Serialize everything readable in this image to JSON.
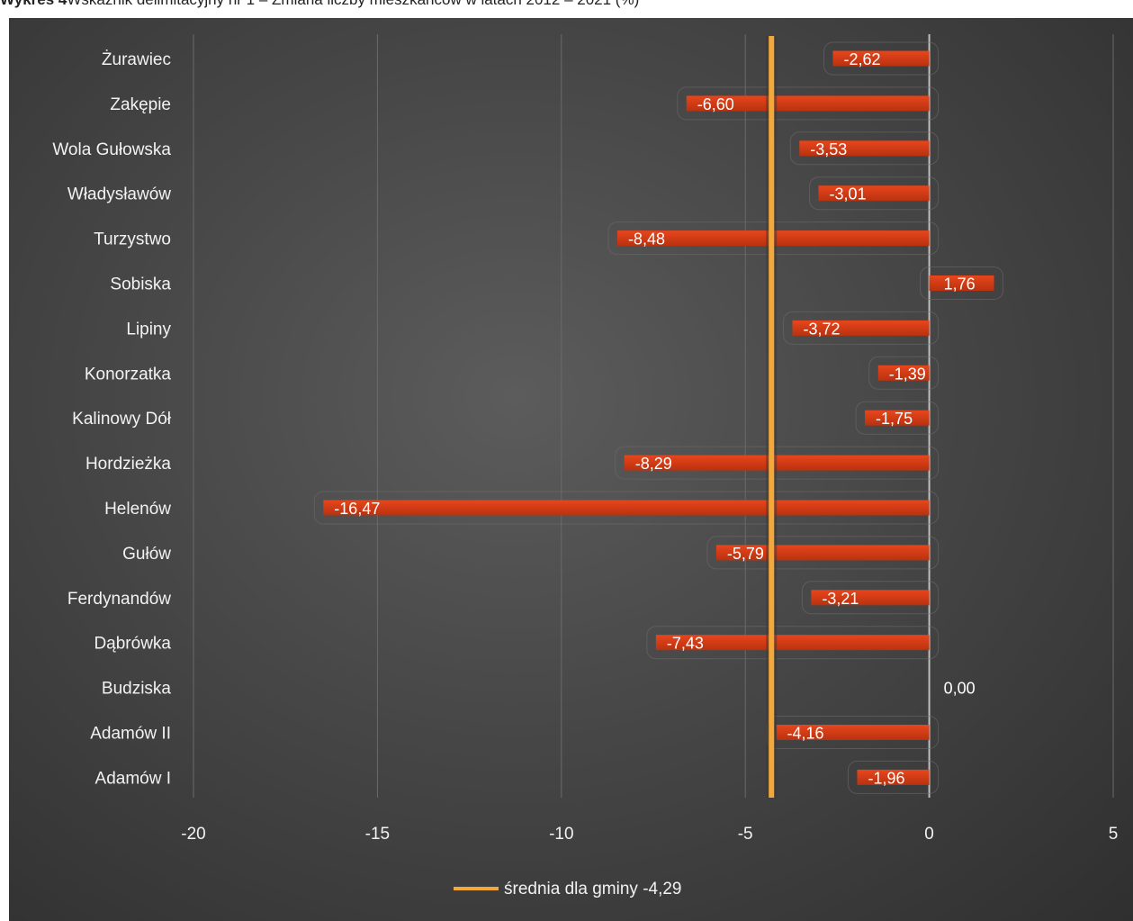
{
  "figure": {
    "title_lead": "Wykres 4",
    "title_text": "Wskaźnik delimitacyjny nr 1 – Zmiana liczby mieszkańców w latach 2012 – 2021 (%)"
  },
  "colors": {
    "bar": "#e8461c",
    "bar_dark": "#b83210",
    "average_line": "#f5a83a",
    "zero_line": "#bfbfbf",
    "grid": "#6a6a6a",
    "text": "#f2f2f2"
  },
  "chart_data": {
    "type": "bar",
    "orientation": "horizontal",
    "categories": [
      "Żurawiec",
      "Zakępie",
      "Wola Gułowska",
      "Władysławów",
      "Turzystwo",
      "Sobiska",
      "Lipiny",
      "Konorzatka",
      "Kalinowy Dół",
      "Hordzieżka",
      "Helenów",
      "Gułów",
      "Ferdynandów",
      "Dąbrówka",
      "Budziska",
      "Adamów II",
      "Adamów I"
    ],
    "values": [
      -2.62,
      -6.6,
      -3.53,
      -3.01,
      -8.48,
      1.76,
      -3.72,
      -1.39,
      -1.75,
      -8.29,
      -16.47,
      -5.79,
      -3.21,
      -7.43,
      0.0,
      -4.16,
      -1.96
    ],
    "value_labels": [
      "-2,62",
      "-6,60",
      "-3,53",
      "-3,01",
      "-8,48",
      "1,76",
      "-3,72",
      "-1,39",
      "-1,75",
      "-8,29",
      "-16,47",
      "-5,79",
      "-3,21",
      "-7,43",
      "0,00",
      "-4,16",
      "-1,96"
    ],
    "xlim": [
      -20,
      5
    ],
    "x_ticks": [
      -20,
      -15,
      -10,
      -5,
      0,
      5
    ],
    "x_tick_labels": [
      "-20",
      "-15",
      "-10",
      "-5",
      "0",
      "5"
    ],
    "grid": true,
    "legend_position": "bottom",
    "reference_line": {
      "name": "średnia dla gminy -4,29",
      "value": -4.29
    }
  }
}
